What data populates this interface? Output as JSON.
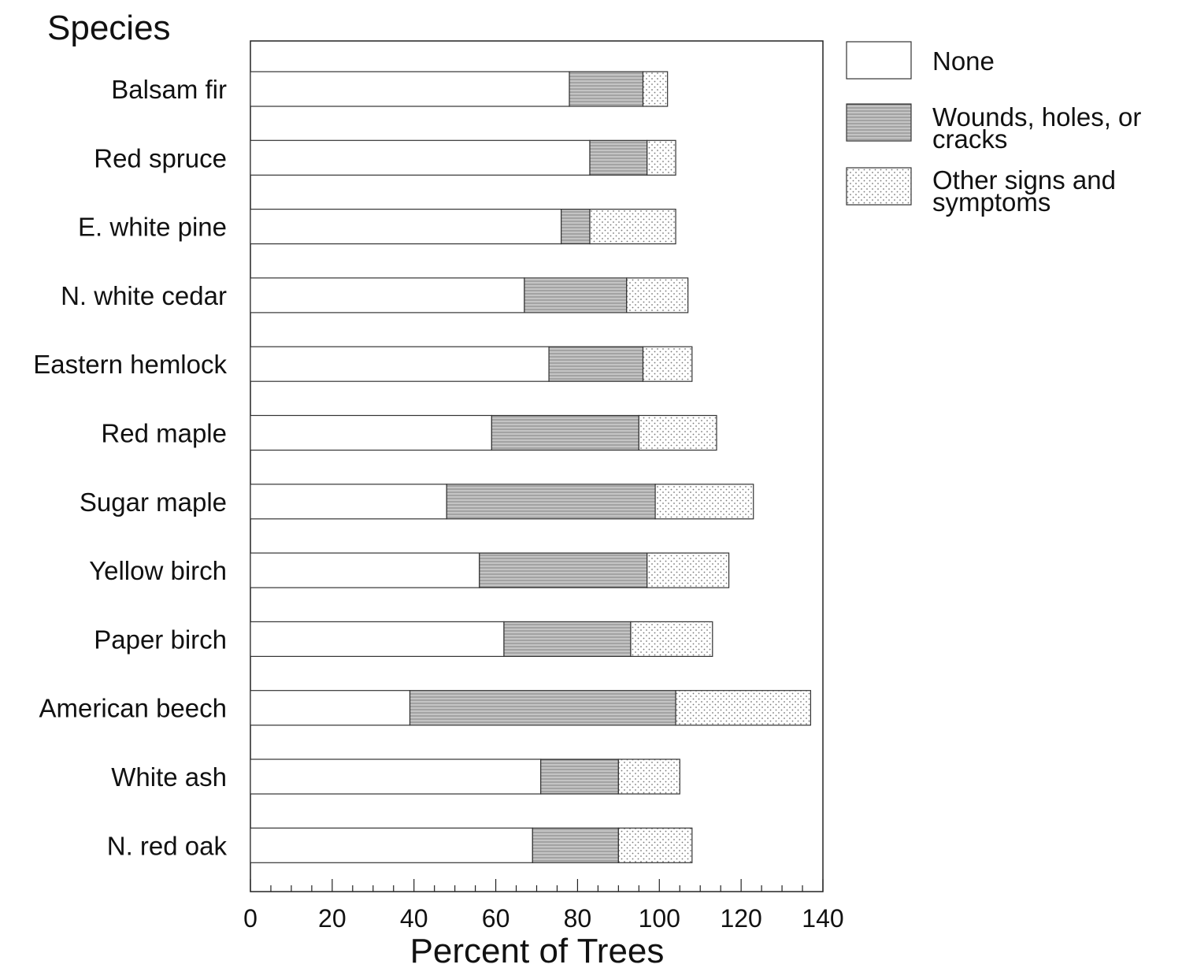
{
  "chart_data": {
    "type": "bar",
    "orientation": "horizontal",
    "stacked": true,
    "ylabel": "Species",
    "xlabel": "Percent of Trees",
    "xlim": [
      0,
      140
    ],
    "xticks": [
      0,
      20,
      40,
      60,
      80,
      100,
      120,
      140
    ],
    "grid": false,
    "legend_position": "right",
    "categories": [
      "Balsam fir",
      "Red spruce",
      "E. white pine",
      "N. white cedar",
      "Eastern hemlock",
      "Red maple",
      "Sugar maple",
      "Yellow birch",
      "Paper birch",
      "American beech",
      "White ash",
      "N. red oak"
    ],
    "series": [
      {
        "name": "None",
        "pattern": "none",
        "values": [
          78,
          83,
          76,
          67,
          73,
          59,
          48,
          56,
          62,
          39,
          71,
          69
        ]
      },
      {
        "name": "Wounds, holes, or cracks",
        "pattern": "horizontal-lines",
        "values": [
          18,
          14,
          7,
          25,
          23,
          36,
          51,
          41,
          31,
          65,
          19,
          21
        ]
      },
      {
        "name": "Other signs and symptoms",
        "pattern": "dots",
        "values": [
          6,
          7,
          21,
          15,
          12,
          19,
          24,
          20,
          20,
          33,
          15,
          18
        ]
      }
    ]
  }
}
